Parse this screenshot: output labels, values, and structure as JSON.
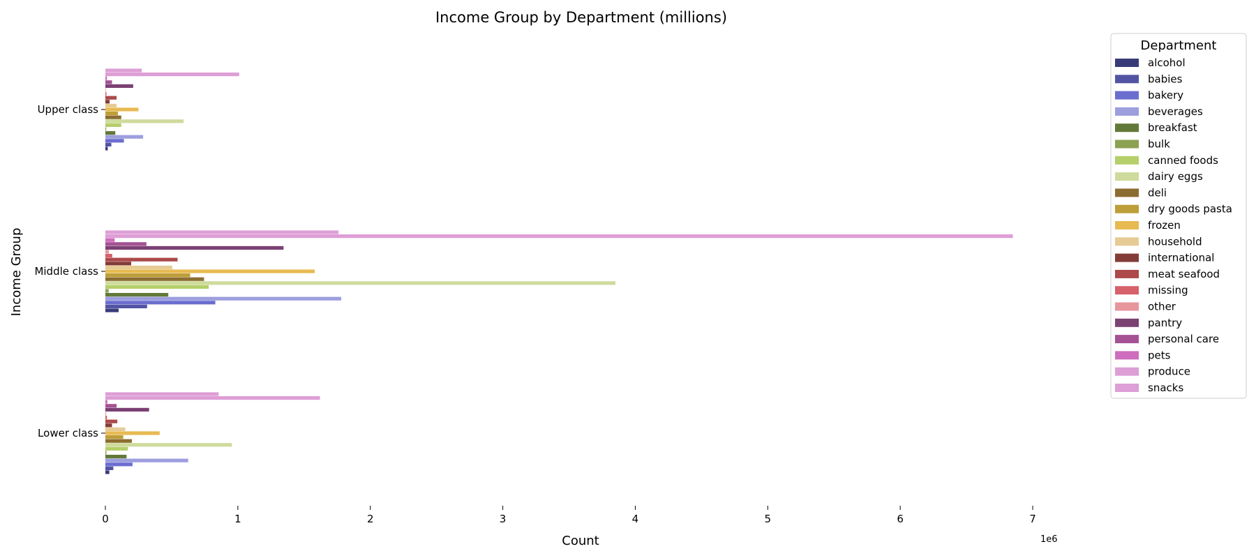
{
  "chart_data": {
    "type": "bar",
    "orientation": "horizontal",
    "title": "Income Group by Department (millions)",
    "xlabel": "Count",
    "ylabel": "Income Group",
    "x_offset_label": "1e6",
    "xlim": [
      0,
      7000000
    ],
    "x_ticks": [
      0,
      1000000,
      2000000,
      3000000,
      4000000,
      5000000,
      6000000,
      7000000
    ],
    "x_tick_labels": [
      "0",
      "1",
      "2",
      "3",
      "4",
      "5",
      "6",
      "7"
    ],
    "grid": false,
    "legend": {
      "title": "Department",
      "position": "right"
    },
    "categories": [
      "Upper class",
      "Middle class",
      "Lower class"
    ],
    "series": [
      {
        "name": "alcohol",
        "color": "#393b79",
        "values": [
          18000,
          100000,
          30000
        ]
      },
      {
        "name": "babies",
        "color": "#5254a3",
        "values": [
          45000,
          315000,
          60000
        ]
      },
      {
        "name": "bakery",
        "color": "#6b6ecf",
        "values": [
          140000,
          830000,
          205000
        ]
      },
      {
        "name": "beverages",
        "color": "#9c9ede",
        "values": [
          285000,
          1780000,
          625000
        ]
      },
      {
        "name": "breakfast",
        "color": "#637939",
        "values": [
          75000,
          475000,
          160000
        ]
      },
      {
        "name": "bulk",
        "color": "#8ca252",
        "values": [
          6000,
          25000,
          8000
        ]
      },
      {
        "name": "canned foods",
        "color": "#b5cf6b",
        "values": [
          120000,
          780000,
          170000
        ]
      },
      {
        "name": "dairy eggs",
        "color": "#cedb9c",
        "values": [
          590000,
          3850000,
          955000
        ]
      },
      {
        "name": "deli",
        "color": "#8c6d31",
        "values": [
          120000,
          745000,
          200000
        ]
      },
      {
        "name": "dry goods pasta",
        "color": "#bd9e39",
        "values": [
          95000,
          640000,
          135000
        ]
      },
      {
        "name": "frozen",
        "color": "#e7ba52",
        "values": [
          250000,
          1580000,
          410000
        ]
      },
      {
        "name": "household",
        "color": "#e7cb94",
        "values": [
          85000,
          505000,
          150000
        ]
      },
      {
        "name": "international",
        "color": "#843c39",
        "values": [
          32000,
          195000,
          50000
        ]
      },
      {
        "name": "meat seafood",
        "color": "#ad494a",
        "values": [
          85000,
          545000,
          90000
        ]
      },
      {
        "name": "missing",
        "color": "#d6616b",
        "values": [
          8000,
          52000,
          12000
        ]
      },
      {
        "name": "other",
        "color": "#e7969c",
        "values": [
          4000,
          27000,
          6000
        ]
      },
      {
        "name": "pantry",
        "color": "#7b4173",
        "values": [
          210000,
          1345000,
          330000
        ]
      },
      {
        "name": "personal care",
        "color": "#a55194",
        "values": [
          50000,
          310000,
          85000
        ]
      },
      {
        "name": "pets",
        "color": "#ce6dbd",
        "values": [
          12000,
          70000,
          15000
        ]
      },
      {
        "name": "produce",
        "color": "#de9ed6",
        "values": [
          1010000,
          6850000,
          1620000
        ]
      },
      {
        "name": "snacks",
        "color": "#de9ed6",
        "values": [
          275000,
          1760000,
          855000
        ]
      }
    ]
  }
}
